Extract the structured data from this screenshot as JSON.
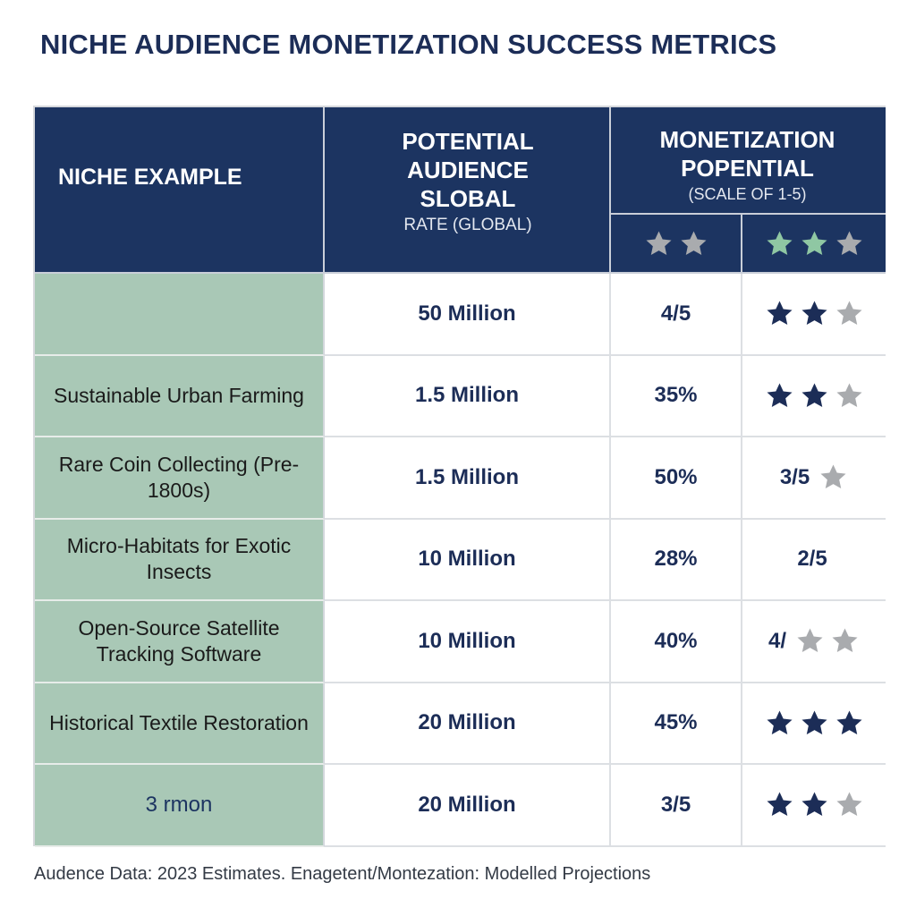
{
  "title": "NICHE AUDIENCE MONETIZATION SUCCESS METRICS",
  "header": {
    "niche": "NICHE EXAMPLE",
    "audience_line1": "POTENTIAL",
    "audience_line2": "AUDIENCE",
    "audience_line3": "SLOBAL",
    "audience_sub": "RATE (GLOBAL)",
    "monetization_line1": "MONETIZATION",
    "monetization_line2": "POPENTIAL",
    "monetization_sub": "(SCALE OF 1-5)",
    "star_cols": [
      {
        "stars": [
          "gray",
          "gray"
        ]
      },
      {
        "stars": [
          "green",
          "green",
          "gray"
        ]
      }
    ]
  },
  "colors": {
    "navy": "#1c3461",
    "star_navy": "#1c2d57",
    "star_gray": "#a9abae",
    "star_green": "#8fc7a3",
    "niche_bg": "#a9c8b6"
  },
  "rows": [
    {
      "niche": "",
      "niche_style": "dark",
      "audience": "50 Million",
      "rate": "4/5",
      "score_text": "",
      "stars": [
        "navy",
        "navy",
        "gray"
      ]
    },
    {
      "niche": "Sustainable Urban Farming",
      "niche_style": "dark",
      "audience": "1.5 Million",
      "rate": "35%",
      "score_text": "",
      "stars": [
        "navy",
        "navy",
        "gray"
      ]
    },
    {
      "niche": "Rare Coin Collecting (Pre-1800s)",
      "niche_style": "dark",
      "audience": "1.5 Million",
      "rate": "50%",
      "score_text": "3/5",
      "stars": [
        "gray"
      ]
    },
    {
      "niche": "Micro-Habitats for Exotic Insects",
      "niche_style": "dark",
      "audience": "10 Million",
      "rate": "28%",
      "score_text": "2/5",
      "stars": []
    },
    {
      "niche": "Open-Source Satellite Tracking Software",
      "niche_style": "dark",
      "audience": "10 Million",
      "rate": "40%",
      "score_text": "4/",
      "stars": [
        "gray",
        "gray"
      ]
    },
    {
      "niche": "Historical Textile Restoration",
      "niche_style": "dark",
      "audience": "20 Million",
      "rate": "45%",
      "score_text": "",
      "stars": [
        "navy",
        "navy",
        "navy"
      ]
    },
    {
      "niche": "3 rmon",
      "niche_style": "navy",
      "audience": "20 Million",
      "rate": "3/5",
      "score_text": "",
      "stars": [
        "navy",
        "navy",
        "gray"
      ]
    }
  ],
  "footer": "Audence Data: 2023 Estimates. Enagetent/Montezation: Modelled Projections"
}
